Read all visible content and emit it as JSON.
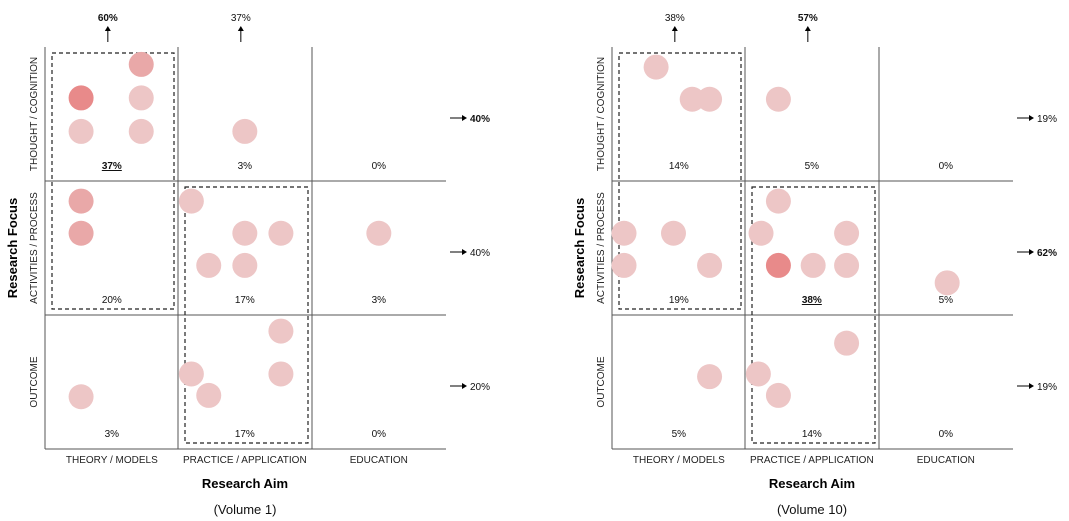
{
  "chart_data": [
    {
      "type": "scatter",
      "caption": "(Volume 1)",
      "xlabel": "Research Aim",
      "ylabel": "Research Focus",
      "columns": [
        "THEORY / MODELS",
        "PRACTICE / APPLICATION",
        "EDUCATION"
      ],
      "rows": [
        "THOUGHT / COGNITION",
        "ACTIVITIES / PROCESS",
        "OUTCOME"
      ],
      "cell_values": [
        [
          {
            "text": "37%",
            "bold": true,
            "underline": true
          },
          {
            "text": "3%"
          },
          {
            "text": "0%"
          }
        ],
        [
          {
            "text": "20%"
          },
          {
            "text": "17%"
          },
          {
            "text": "3%"
          }
        ],
        [
          {
            "text": "3%"
          },
          {
            "text": "17%"
          },
          {
            "text": "0%"
          }
        ]
      ],
      "column_totals": [
        {
          "text": "60%",
          "bold": true
        },
        {
          "text": "37%"
        },
        null
      ],
      "row_totals": [
        {
          "text": "40%",
          "bold": true
        },
        {
          "text": "40%"
        },
        {
          "text": "20%"
        }
      ],
      "points": [
        {
          "row": 0,
          "col": 0,
          "x": 0.72,
          "y": 0.13,
          "intensity": 0.45
        },
        {
          "row": 0,
          "col": 0,
          "x": 0.27,
          "y": 0.38,
          "intensity": 0.8
        },
        {
          "row": 0,
          "col": 0,
          "x": 0.72,
          "y": 0.38,
          "intensity": 0.25
        },
        {
          "row": 0,
          "col": 0,
          "x": 0.27,
          "y": 0.63,
          "intensity": 0.25
        },
        {
          "row": 0,
          "col": 0,
          "x": 0.72,
          "y": 0.63,
          "intensity": 0.25
        },
        {
          "row": 0,
          "col": 1,
          "x": 0.5,
          "y": 0.63,
          "intensity": 0.25
        },
        {
          "row": 1,
          "col": 0,
          "x": 0.27,
          "y": 0.15,
          "intensity": 0.6
        },
        {
          "row": 1,
          "col": 0,
          "x": 0.27,
          "y": 0.39,
          "intensity": 0.6
        },
        {
          "row": 1,
          "col": 1,
          "x": 0.1,
          "y": 0.15,
          "intensity": 0.25
        },
        {
          "row": 1,
          "col": 1,
          "x": 0.5,
          "y": 0.39,
          "intensity": 0.25
        },
        {
          "row": 1,
          "col": 1,
          "x": 0.77,
          "y": 0.39,
          "intensity": 0.25
        },
        {
          "row": 1,
          "col": 1,
          "x": 0.23,
          "y": 0.63,
          "intensity": 0.25
        },
        {
          "row": 1,
          "col": 1,
          "x": 0.5,
          "y": 0.63,
          "intensity": 0.25
        },
        {
          "row": 1,
          "col": 2,
          "x": 0.5,
          "y": 0.39,
          "intensity": 0.25
        },
        {
          "row": 2,
          "col": 0,
          "x": 0.27,
          "y": 0.61,
          "intensity": 0.25
        },
        {
          "row": 2,
          "col": 1,
          "x": 0.77,
          "y": 0.12,
          "intensity": 0.25
        },
        {
          "row": 2,
          "col": 1,
          "x": 0.1,
          "y": 0.44,
          "intensity": 0.25
        },
        {
          "row": 2,
          "col": 1,
          "x": 0.77,
          "y": 0.44,
          "intensity": 0.25
        },
        {
          "row": 2,
          "col": 1,
          "x": 0.23,
          "y": 0.6,
          "intensity": 0.25
        }
      ],
      "dashed_regions": [
        {
          "cells": [
            [
              0,
              0
            ],
            [
              1,
              0
            ]
          ]
        },
        {
          "cells": [
            [
              1,
              1
            ],
            [
              2,
              1
            ]
          ]
        }
      ]
    },
    {
      "type": "scatter",
      "caption": "(Volume 10)",
      "xlabel": "Research Aim",
      "ylabel": "Research Focus",
      "columns": [
        "THEORY / MODELS",
        "PRACTICE / APPLICATION",
        "EDUCATION"
      ],
      "rows": [
        "THOUGHT / COGNITION",
        "ACTIVITIES / PROCESS",
        "OUTCOME"
      ],
      "cell_values": [
        [
          {
            "text": "14%"
          },
          {
            "text": "5%"
          },
          {
            "text": "0%"
          }
        ],
        [
          {
            "text": "19%"
          },
          {
            "text": "38%",
            "bold": true,
            "underline": true
          },
          {
            "text": "5%"
          }
        ],
        [
          {
            "text": "5%"
          },
          {
            "text": "14%"
          },
          {
            "text": "0%"
          }
        ]
      ],
      "column_totals": [
        {
          "text": "38%"
        },
        {
          "text": "57%",
          "bold": true
        },
        null
      ],
      "row_totals": [
        {
          "text": "19%"
        },
        {
          "text": "62%",
          "bold": true
        },
        {
          "text": "19%"
        }
      ],
      "points": [
        {
          "row": 0,
          "col": 0,
          "x": 0.33,
          "y": 0.15,
          "intensity": 0.25
        },
        {
          "row": 0,
          "col": 0,
          "x": 0.6,
          "y": 0.39,
          "intensity": 0.25
        },
        {
          "row": 0,
          "col": 0,
          "x": 0.73,
          "y": 0.39,
          "intensity": 0.25
        },
        {
          "row": 0,
          "col": 1,
          "x": 0.25,
          "y": 0.39,
          "intensity": 0.25
        },
        {
          "row": 1,
          "col": 0,
          "x": 0.09,
          "y": 0.39,
          "intensity": 0.25
        },
        {
          "row": 1,
          "col": 0,
          "x": 0.46,
          "y": 0.39,
          "intensity": 0.25
        },
        {
          "row": 1,
          "col": 0,
          "x": 0.09,
          "y": 0.63,
          "intensity": 0.25
        },
        {
          "row": 1,
          "col": 0,
          "x": 0.73,
          "y": 0.63,
          "intensity": 0.25
        },
        {
          "row": 1,
          "col": 1,
          "x": 0.25,
          "y": 0.15,
          "intensity": 0.25
        },
        {
          "row": 1,
          "col": 1,
          "x": 0.12,
          "y": 0.39,
          "intensity": 0.25
        },
        {
          "row": 1,
          "col": 1,
          "x": 0.76,
          "y": 0.39,
          "intensity": 0.25
        },
        {
          "row": 1,
          "col": 1,
          "x": 0.25,
          "y": 0.63,
          "intensity": 0.8
        },
        {
          "row": 1,
          "col": 1,
          "x": 0.51,
          "y": 0.63,
          "intensity": 0.25
        },
        {
          "row": 1,
          "col": 1,
          "x": 0.76,
          "y": 0.63,
          "intensity": 0.25
        },
        {
          "row": 1,
          "col": 2,
          "x": 0.51,
          "y": 0.76,
          "intensity": 0.25
        },
        {
          "row": 2,
          "col": 0,
          "x": 0.73,
          "y": 0.46,
          "intensity": 0.25
        },
        {
          "row": 2,
          "col": 1,
          "x": 0.76,
          "y": 0.21,
          "intensity": 0.25
        },
        {
          "row": 2,
          "col": 1,
          "x": 0.1,
          "y": 0.44,
          "intensity": 0.25
        },
        {
          "row": 2,
          "col": 1,
          "x": 0.25,
          "y": 0.6,
          "intensity": 0.25
        }
      ],
      "dashed_regions": [
        {
          "cells": [
            [
              0,
              0
            ],
            [
              1,
              0
            ]
          ]
        },
        {
          "cells": [
            [
              1,
              1
            ],
            [
              2,
              1
            ]
          ]
        }
      ]
    }
  ],
  "colors": {
    "bubble_light": "#edc6c6",
    "bubble_mid": "#e9a8a8",
    "bubble_dark": "#e88a8a",
    "grid_line": "#555555"
  }
}
